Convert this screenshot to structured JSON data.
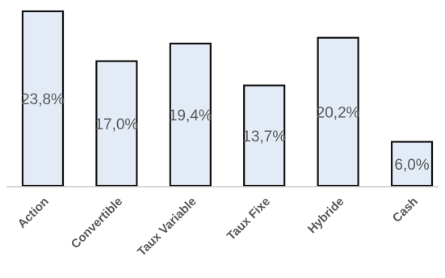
{
  "chart_data": {
    "type": "bar",
    "categories": [
      "Action",
      "Convertible",
      "Taux Variable",
      "Taux Fixe",
      "Hybride",
      "Cash"
    ],
    "values": [
      23.8,
      17.0,
      19.4,
      13.7,
      20.2,
      6.0
    ],
    "data_labels": [
      "23,8%",
      "17,0%",
      "19,4%",
      "13,7%",
      "20,2%",
      "6,0%"
    ],
    "ylim": [
      0,
      23.8
    ],
    "grid": false,
    "legend": "none",
    "colors": {
      "bar_fill": "#e3ecf6",
      "bar_stroke": "#111111",
      "text": "#595959",
      "axis": "#c8c8c8"
    }
  }
}
